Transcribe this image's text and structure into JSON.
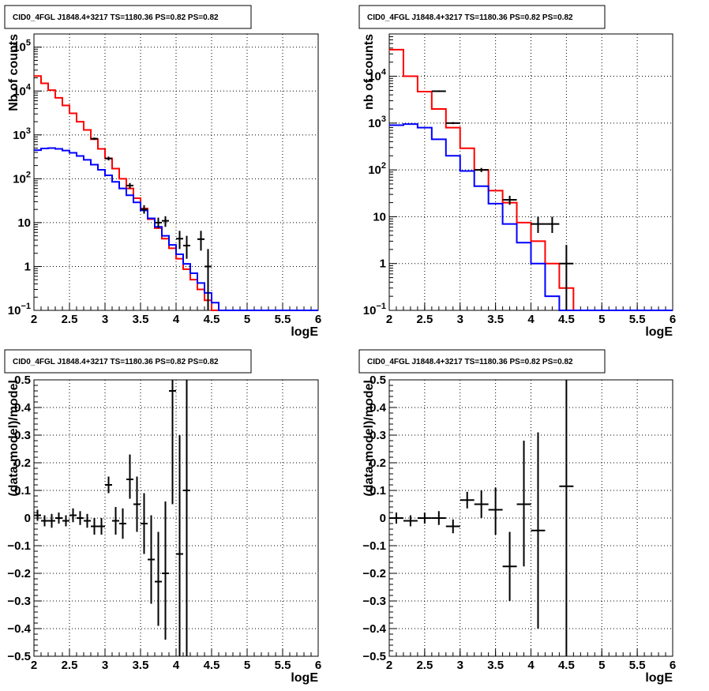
{
  "chart_data": [
    {
      "type": "line",
      "title": "CID0_4FGL J1848.4+3217 TS=1180.36 PS=0.82 PS=0.82",
      "xlabel": "logE",
      "ylabel": "Nb of counts",
      "xlim": [
        2,
        6
      ],
      "ylim": [
        0.1,
        200000
      ],
      "yscale": "log",
      "grid": true,
      "x_ticks": [
        "2",
        "2.5",
        "3",
        "3.5",
        "4",
        "4.5",
        "5",
        "5.5",
        "6"
      ],
      "y_ticks": [
        {
          "v": 0.1,
          "label": "10",
          "exp": "−1"
        },
        {
          "v": 1,
          "label": "1",
          "exp": ""
        },
        {
          "v": 10,
          "label": "10",
          "exp": ""
        },
        {
          "v": 100,
          "label": "10",
          "exp": "2"
        },
        {
          "v": 1000,
          "label": "10",
          "exp": "3"
        },
        {
          "v": 10000,
          "label": "10",
          "exp": "4"
        },
        {
          "v": 100000,
          "label": "10",
          "exp": "5"
        }
      ],
      "bin_edges": [
        2.0,
        2.1,
        2.2,
        2.3,
        2.4,
        2.5,
        2.6,
        2.7,
        2.8,
        2.9,
        3.0,
        3.1,
        3.2,
        3.3,
        3.4,
        3.5,
        3.6,
        3.7,
        3.8,
        3.9,
        4.0,
        4.1,
        4.2,
        4.3,
        4.4,
        4.5,
        4.6,
        4.7,
        4.8,
        4.9,
        5.0,
        5.1,
        5.2,
        5.3,
        5.4,
        5.5,
        5.6,
        5.7,
        5.8,
        5.9,
        6.0
      ],
      "series": [
        {
          "color": "#ff0000",
          "values": [
            22000,
            15000,
            10500,
            7000,
            4700,
            3100,
            2000,
            1300,
            800,
            480,
            290,
            170,
            100,
            60,
            36,
            21,
            12,
            7.5,
            4.3,
            2.6,
            1.5,
            0.87,
            0.5,
            0.3,
            0.17,
            0.1,
            0.1,
            0.1,
            0.1,
            0.1,
            0.1,
            0.1,
            0.1,
            0.1,
            0.1,
            0.1,
            0.1,
            0.1,
            0.1,
            0.1
          ]
        },
        {
          "color": "#0000ff",
          "values": [
            450,
            490,
            500,
            480,
            440,
            390,
            330,
            270,
            210,
            160,
            120,
            85,
            60,
            42,
            29,
            19,
            12.5,
            8,
            5,
            3.1,
            1.9,
            1.15,
            0.7,
            0.42,
            0.25,
            0.15,
            0.1,
            0.1,
            0.1,
            0.1,
            0.1,
            0.1,
            0.1,
            0.1,
            0.1,
            0.1,
            0.1,
            0.1,
            0.1,
            0.1
          ]
        }
      ],
      "points": [
        {
          "x": 2.85,
          "y": 820,
          "lo": 770,
          "hi": 870
        },
        {
          "x": 3.05,
          "y": 290,
          "lo": 262,
          "hi": 320
        },
        {
          "x": 3.35,
          "y": 70,
          "lo": 60,
          "hi": 80
        },
        {
          "x": 3.55,
          "y": 20,
          "lo": 16,
          "hi": 25
        },
        {
          "x": 3.75,
          "y": 10,
          "lo": 7.5,
          "hi": 13
        },
        {
          "x": 3.85,
          "y": 11,
          "lo": 8,
          "hi": 14
        },
        {
          "x": 4.05,
          "y": 4.3,
          "lo": 2.5,
          "hi": 6.5
        },
        {
          "x": 4.15,
          "y": 3,
          "lo": 1.5,
          "hi": 5
        },
        {
          "x": 4.35,
          "y": 4.2,
          "lo": 2.3,
          "hi": 6.5
        },
        {
          "x": 4.45,
          "y": 1,
          "lo": 0.1,
          "hi": 2.5
        }
      ]
    },
    {
      "type": "line",
      "title": "CID0_4FGL J1848.4+3217 TS=1180.36 PS=0.82 PS=0.82",
      "xlabel": "logE",
      "ylabel": "nb of counts",
      "xlim": [
        2,
        6
      ],
      "ylim": [
        0.1,
        80000
      ],
      "yscale": "log",
      "grid": true,
      "x_ticks": [
        "2",
        "2.5",
        "3",
        "3.5",
        "4",
        "4.5",
        "5",
        "5.5",
        "6"
      ],
      "y_ticks": [
        {
          "v": 0.1,
          "label": "10",
          "exp": "−1"
        },
        {
          "v": 1,
          "label": "1",
          "exp": ""
        },
        {
          "v": 10,
          "label": "10",
          "exp": ""
        },
        {
          "v": 100,
          "label": "10",
          "exp": "2"
        },
        {
          "v": 1000,
          "label": "10",
          "exp": "3"
        },
        {
          "v": 10000,
          "label": "10",
          "exp": "4"
        }
      ],
      "bin_edges": [
        2.0,
        2.2,
        2.4,
        2.6,
        2.8,
        3.0,
        3.2,
        3.4,
        3.6,
        3.8,
        4.0,
        4.2,
        4.4,
        4.6,
        4.8,
        5.0,
        5.2,
        5.4,
        5.6,
        5.8,
        6.0
      ],
      "series": [
        {
          "color": "#ff0000",
          "values": [
            37000,
            10000,
            4700,
            2000,
            800,
            290,
            100,
            36,
            20,
            7.5,
            3,
            1,
            0.3,
            0.1,
            0.1,
            0.1,
            0.1,
            0.1,
            0.1,
            0.1
          ]
        },
        {
          "color": "#0000ff",
          "values": [
            900,
            950,
            800,
            450,
            200,
            95,
            45,
            19,
            7,
            2.8,
            1,
            0.2,
            0.1,
            0.1,
            0.1,
            0.1,
            0.1,
            0.1,
            0.1,
            0.1
          ]
        }
      ],
      "points": [
        {
          "x": 2.7,
          "y": 4800,
          "lo": 4600,
          "hi": 5000
        },
        {
          "x": 2.9,
          "y": 1000,
          "lo": 950,
          "hi": 1050
        },
        {
          "x": 3.3,
          "y": 100,
          "lo": 90,
          "hi": 110
        },
        {
          "x": 3.7,
          "y": 23,
          "lo": 18,
          "hi": 28
        },
        {
          "x": 4.1,
          "y": 7,
          "lo": 4.5,
          "hi": 10
        },
        {
          "x": 4.3,
          "y": 7,
          "lo": 4.5,
          "hi": 10
        },
        {
          "x": 4.5,
          "y": 1,
          "lo": 0.1,
          "hi": 2.5
        }
      ]
    },
    {
      "type": "scatter",
      "title": "CID0_4FGL J1848.4+3217 TS=1180.36 PS=0.82 PS=0.82",
      "xlabel": "logE",
      "ylabel": "(data-model)/model",
      "xlim": [
        2,
        6
      ],
      "ylim": [
        -0.5,
        0.5
      ],
      "grid": true,
      "x_ticks": [
        "2",
        "2.5",
        "3",
        "3.5",
        "4",
        "4.5",
        "5",
        "5.5",
        "6"
      ],
      "y_ticks": [
        {
          "v": -0.5,
          "label": "−0.5"
        },
        {
          "v": -0.4,
          "label": "−0.4"
        },
        {
          "v": -0.3,
          "label": "−0.3"
        },
        {
          "v": -0.2,
          "label": "−0.2"
        },
        {
          "v": -0.1,
          "label": "−0.1"
        },
        {
          "v": 0,
          "label": "0"
        },
        {
          "v": 0.1,
          "label": "0.1"
        },
        {
          "v": 0.2,
          "label": "0.2"
        },
        {
          "v": 0.3,
          "label": "0.3"
        },
        {
          "v": 0.4,
          "label": "0.4"
        },
        {
          "v": 0.5,
          "label": "0.5"
        }
      ],
      "half_width": 0.05,
      "points": [
        {
          "x": 2.05,
          "y": 0.01,
          "lo": -0.01,
          "hi": 0.03
        },
        {
          "x": 2.15,
          "y": -0.01,
          "lo": -0.03,
          "hi": 0.01
        },
        {
          "x": 2.25,
          "y": -0.01,
          "lo": -0.035,
          "hi": 0.015
        },
        {
          "x": 2.35,
          "y": 0.0,
          "lo": -0.02,
          "hi": 0.02
        },
        {
          "x": 2.45,
          "y": -0.01,
          "lo": -0.03,
          "hi": 0.01
        },
        {
          "x": 2.55,
          "y": 0.01,
          "lo": -0.015,
          "hi": 0.035
        },
        {
          "x": 2.65,
          "y": 0.0,
          "lo": -0.025,
          "hi": 0.025
        },
        {
          "x": 2.75,
          "y": -0.01,
          "lo": -0.035,
          "hi": 0.015
        },
        {
          "x": 2.85,
          "y": -0.03,
          "lo": -0.06,
          "hi": 0.0
        },
        {
          "x": 2.95,
          "y": -0.03,
          "lo": -0.06,
          "hi": 0.0
        },
        {
          "x": 3.05,
          "y": 0.12,
          "lo": 0.09,
          "hi": 0.15
        },
        {
          "x": 3.15,
          "y": -0.01,
          "lo": -0.06,
          "hi": 0.04
        },
        {
          "x": 3.25,
          "y": -0.02,
          "lo": -0.075,
          "hi": 0.035
        },
        {
          "x": 3.35,
          "y": 0.14,
          "lo": 0.07,
          "hi": 0.23
        },
        {
          "x": 3.45,
          "y": 0.05,
          "lo": -0.05,
          "hi": 0.15
        },
        {
          "x": 3.55,
          "y": -0.02,
          "lo": -0.13,
          "hi": 0.09
        },
        {
          "x": 3.65,
          "y": -0.15,
          "lo": -0.31,
          "hi": 0.01
        },
        {
          "x": 3.75,
          "y": -0.23,
          "lo": -0.39,
          "hi": -0.05
        },
        {
          "x": 3.85,
          "y": -0.2,
          "lo": -0.44,
          "hi": 0.06
        },
        {
          "x": 3.95,
          "y": 0.46,
          "lo": 0.05,
          "hi": 0.5
        },
        {
          "x": 4.05,
          "y": -0.13,
          "lo": -0.5,
          "hi": 0.3
        },
        {
          "x": 4.15,
          "y": 0.1,
          "lo": -0.5,
          "hi": 0.5
        }
      ]
    },
    {
      "type": "scatter",
      "title": "CID0_4FGL J1848.4+3217 TS=1180.36 PS=0.82 PS=0.82",
      "xlabel": "logE",
      "ylabel": "(data-model)/model",
      "xlim": [
        2,
        6
      ],
      "ylim": [
        -0.5,
        0.5
      ],
      "grid": true,
      "x_ticks": [
        "2",
        "2.5",
        "3",
        "3.5",
        "4",
        "4.5",
        "5",
        "5.5",
        "6"
      ],
      "y_ticks": [
        {
          "v": -0.5,
          "label": "−0.5"
        },
        {
          "v": -0.4,
          "label": "−0.4"
        },
        {
          "v": -0.3,
          "label": "−0.3"
        },
        {
          "v": -0.2,
          "label": "−0.2"
        },
        {
          "v": -0.1,
          "label": "−0.1"
        },
        {
          "v": 0,
          "label": "0"
        },
        {
          "v": 0.1,
          "label": "0.1"
        },
        {
          "v": 0.2,
          "label": "0.2"
        },
        {
          "v": 0.3,
          "label": "0.3"
        },
        {
          "v": 0.4,
          "label": "0.4"
        },
        {
          "v": 0.5,
          "label": "0.5"
        }
      ],
      "half_width": 0.1,
      "points": [
        {
          "x": 2.1,
          "y": 0.0,
          "lo": -0.02,
          "hi": 0.02
        },
        {
          "x": 2.3,
          "y": -0.01,
          "lo": -0.03,
          "hi": 0.01
        },
        {
          "x": 2.5,
          "y": 0.0,
          "lo": -0.02,
          "hi": 0.02
        },
        {
          "x": 2.7,
          "y": 0.0,
          "lo": -0.025,
          "hi": 0.025
        },
        {
          "x": 2.9,
          "y": -0.03,
          "lo": -0.055,
          "hi": -0.005
        },
        {
          "x": 3.1,
          "y": 0.065,
          "lo": 0.035,
          "hi": 0.095
        },
        {
          "x": 3.3,
          "y": 0.05,
          "lo": 0.0,
          "hi": 0.1
        },
        {
          "x": 3.5,
          "y": 0.03,
          "lo": -0.06,
          "hi": 0.11
        },
        {
          "x": 3.7,
          "y": -0.175,
          "lo": -0.3,
          "hi": -0.05
        },
        {
          "x": 3.9,
          "y": 0.05,
          "lo": -0.175,
          "hi": 0.28
        },
        {
          "x": 4.1,
          "y": -0.045,
          "lo": -0.4,
          "hi": 0.31
        },
        {
          "x": 4.5,
          "y": 0.115,
          "lo": -0.5,
          "hi": 0.5
        }
      ]
    }
  ]
}
